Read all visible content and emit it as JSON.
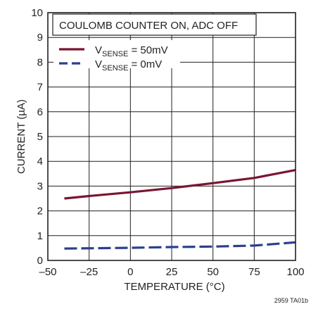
{
  "chart_data": {
    "type": "line",
    "title": "COULOMB COUNTER ON, ADC OFF",
    "xlabel": "TEMPERATURE (°C)",
    "ylabel": "CURRENT (µA)",
    "xlim": [
      -50,
      100
    ],
    "ylim": [
      0,
      10
    ],
    "x_ticks": [
      -50,
      -25,
      0,
      25,
      50,
      75,
      100
    ],
    "x_tick_labels": [
      "–50",
      "–25",
      "0",
      "25",
      "50",
      "75",
      "100"
    ],
    "y_ticks": [
      0,
      1,
      2,
      3,
      4,
      5,
      6,
      7,
      8,
      9,
      10
    ],
    "y_tick_labels": [
      "0",
      "1",
      "2",
      "3",
      "4",
      "5",
      "6",
      "7",
      "8",
      "9",
      "10"
    ],
    "grid": true,
    "legend_position": "top-left",
    "series": [
      {
        "name_main": "V",
        "name_sub": "SENSE",
        "name_rest": " = 50mV",
        "style": "solid",
        "color": "#7a1531",
        "x": [
          -40,
          -25,
          0,
          25,
          50,
          75,
          100
        ],
        "y": [
          2.5,
          2.6,
          2.75,
          2.92,
          3.12,
          3.33,
          3.65
        ]
      },
      {
        "name_main": "V",
        "name_sub": "SENSE",
        "name_rest": " = 0mV",
        "style": "dashed",
        "color": "#2c3f8f",
        "x": [
          -40,
          -25,
          0,
          25,
          50,
          75,
          100
        ],
        "y": [
          0.48,
          0.49,
          0.51,
          0.54,
          0.56,
          0.6,
          0.73
        ]
      }
    ],
    "footnote": "2959 TA01b"
  }
}
